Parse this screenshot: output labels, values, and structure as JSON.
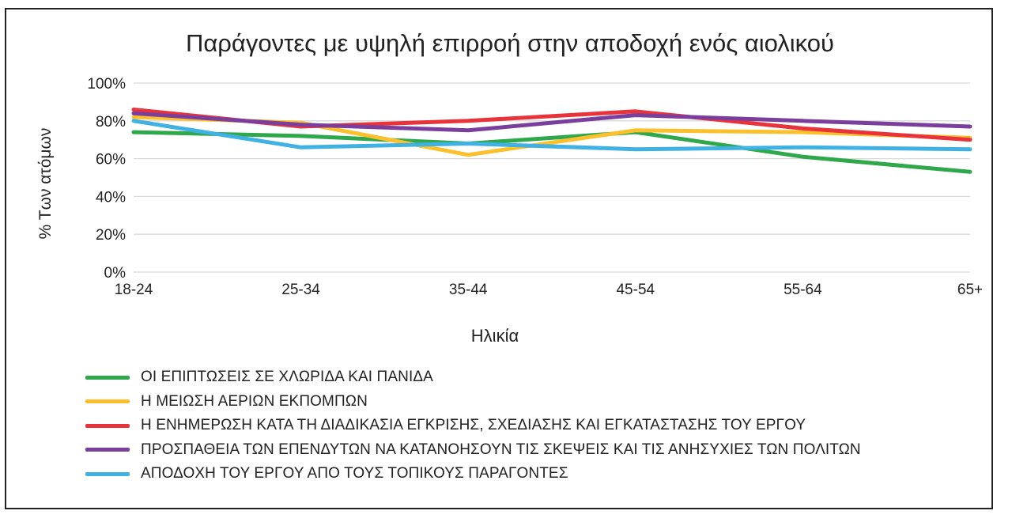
{
  "chart_data": {
    "type": "line",
    "title": "Παράγοντες με υψηλή επιρροή στην αποδοχή ενός αιολικού",
    "xlabel": "Ηλικία",
    "ylabel": "% Των ατόμων",
    "categories": [
      "18-24",
      "25-34",
      "35-44",
      "45-54",
      "55-64",
      "65+"
    ],
    "ylim": [
      0,
      100
    ],
    "yticks": [
      0,
      20,
      40,
      60,
      80,
      100
    ],
    "ytick_labels": [
      "0%",
      "20%",
      "40%",
      "60%",
      "80%",
      "100%"
    ],
    "grid": true,
    "legend_position": "bottom",
    "series": [
      {
        "name": "ΟΙ ΕΠΙΠΤΩΣΕΙΣ ΣΕ ΧΛΩΡΙΔΑ ΚΑΙ ΠΑΝΙΔΑ",
        "color": "#2ea84a",
        "values": [
          74,
          72,
          68,
          74,
          61,
          53
        ]
      },
      {
        "name": "Η ΜΕΙΩΣΗ ΑΕΡΙΩΝ ΕΚΠΟΜΠΩΝ",
        "color": "#fcc02c",
        "values": [
          82,
          79,
          62,
          75,
          74,
          71
        ]
      },
      {
        "name": "Η ΕΝΗΜΕΡΩΣΗ ΚΑΤΑ ΤΗ ΔΙΑΔΙΚΑΣΙΑ ΕΓΚΡΙΣΗΣ, ΣΧΕΔΙΑΣΗΣ ΚΑΙ ΕΓΚΑΤΑΣΤΑΣΗΣ ΤΟΥ ΕΡΓΟΥ",
        "color": "#e8333a",
        "values": [
          86,
          77,
          80,
          85,
          76,
          70
        ]
      },
      {
        "name": "ΠΡΟΣΠΑΘΕΙΑ ΤΩΝ ΕΠΕΝΔΥΤΩΝ ΝΑ ΚΑΤΑΝΟΗΣΟΥΝ ΤΙΣ ΣΚΕΨΕΙΣ ΚΑΙ ΤΙΣ ΑΝΗΣΥΧΙΕΣ ΤΩΝ ΠΟΛΙΤΩΝ",
        "color": "#7a3e9d",
        "values": [
          84,
          78,
          75,
          83,
          80,
          77
        ]
      },
      {
        "name": "ΑΠΟΔΟΧΗ ΤΟΥ ΕΡΓΟΥ ΑΠΟ ΤΟΥΣ ΤΟΠΙΚΟΥΣ ΠΑΡΑΓΟΝΤΕΣ",
        "color": "#3fb1e3",
        "values": [
          80,
          66,
          68,
          65,
          66,
          65
        ]
      }
    ]
  }
}
